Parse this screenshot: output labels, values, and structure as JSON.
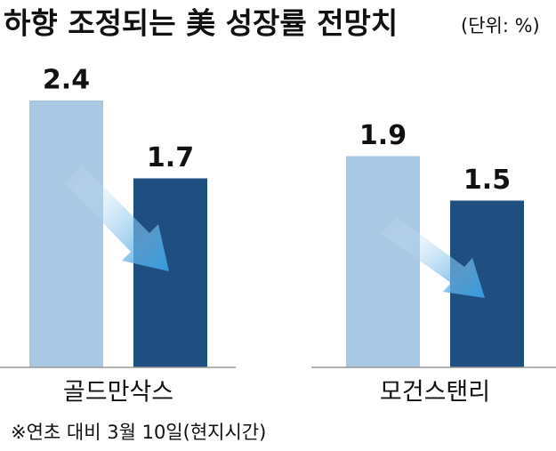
{
  "chart_data": {
    "type": "bar",
    "title": "하향 조정되는 美 성장률 전망치",
    "subtitle": "(단위: %)",
    "categories": [
      "골드만삭스",
      "모건스탠리"
    ],
    "series": [
      {
        "color": "#a9c8e4",
        "values": [
          2.4,
          1.9
        ]
      },
      {
        "color": "#1f4e80",
        "values": [
          1.7,
          1.5
        ]
      }
    ],
    "ylim": [
      0,
      2.4
    ],
    "note": "※연초 대비 3월 10일(현지시간)"
  }
}
